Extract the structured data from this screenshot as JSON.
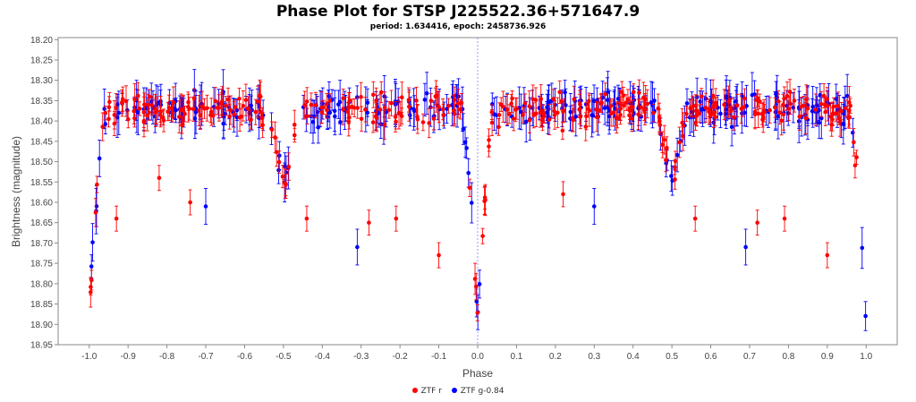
{
  "chart_data": {
    "type": "scatter",
    "title": "Phase Plot for STSP J225522.36+571647.9",
    "subtitle": "period: 1.634416, epoch: 2458736.926",
    "xlabel": "Phase",
    "ylabel": "Brightness (magnitude)",
    "xlim": [
      -1.08,
      1.08
    ],
    "ylim": [
      18.95,
      18.195
    ],
    "y_inverted": true,
    "x_ticks": [
      -1.0,
      -0.9,
      -0.8,
      -0.7,
      -0.6,
      -0.5,
      -0.4,
      -0.3,
      -0.2,
      -0.1,
      0.0,
      0.1,
      0.2,
      0.3,
      0.4,
      0.5,
      0.6,
      0.7,
      0.8,
      0.9,
      1.0
    ],
    "x_tick_labels": [
      "-1.0",
      "-0.9",
      "-0.8",
      "-0.7",
      "-0.6",
      "-0.5",
      "-0.4",
      "-0.3",
      "-0.2",
      "-0.1",
      "0.0",
      "0.1",
      "0.2",
      "0.3",
      "0.4",
      "0.5",
      "0.6",
      "0.7",
      "0.8",
      "0.9",
      "1.0"
    ],
    "y_ticks": [
      18.2,
      18.25,
      18.3,
      18.35,
      18.4,
      18.45,
      18.5,
      18.55,
      18.6,
      18.65,
      18.7,
      18.75,
      18.8,
      18.85,
      18.9,
      18.95
    ],
    "y_tick_labels": [
      "18.20",
      "18.25",
      "18.30",
      "18.35",
      "18.40",
      "18.45",
      "18.50",
      "18.55",
      "18.60",
      "18.65",
      "18.70",
      "18.75",
      "18.80",
      "18.85",
      "18.90",
      "18.95"
    ],
    "reference_line_x": 0.0,
    "grid": false,
    "legend_position": "bottom",
    "light_curve_model": {
      "baseline_magnitude": 18.37,
      "primary_eclipse": {
        "phase": 0.0,
        "depth_mag": 0.52,
        "half_width_phase": 0.045
      },
      "secondary_eclipse": {
        "phase": 0.5,
        "depth_mag": 0.19,
        "half_width_phase": 0.045
      },
      "sample_points": [
        {
          "x": -1.0,
          "y": 18.87
        },
        {
          "x": -0.98,
          "y": 18.62
        },
        {
          "x": -0.96,
          "y": 18.42
        },
        {
          "x": -0.9,
          "y": 18.37
        },
        {
          "x": -0.75,
          "y": 18.37
        },
        {
          "x": -0.56,
          "y": 18.38
        },
        {
          "x": -0.52,
          "y": 18.5
        },
        {
          "x": -0.5,
          "y": 18.56
        },
        {
          "x": -0.47,
          "y": 18.44
        },
        {
          "x": -0.3,
          "y": 18.36
        },
        {
          "x": -0.1,
          "y": 18.37
        },
        {
          "x": -0.03,
          "y": 18.55
        },
        {
          "x": 0.0,
          "y": 18.87
        },
        {
          "x": 0.03,
          "y": 18.52
        },
        {
          "x": 0.1,
          "y": 18.37
        },
        {
          "x": 0.3,
          "y": 18.36
        },
        {
          "x": 0.47,
          "y": 18.44
        },
        {
          "x": 0.5,
          "y": 18.56
        },
        {
          "x": 0.53,
          "y": 18.48
        },
        {
          "x": 0.7,
          "y": 18.37
        },
        {
          "x": 0.9,
          "y": 18.37
        },
        {
          "x": 0.96,
          "y": 18.45
        },
        {
          "x": 1.0,
          "y": 18.87
        }
      ]
    },
    "series": [
      {
        "name": "ZTF r",
        "color": "#ff0000",
        "offset": 0.0,
        "count": 360,
        "outliers": [
          {
            "x": -0.82,
            "y": 18.54
          },
          {
            "x": -0.74,
            "y": 18.6
          },
          {
            "x": -0.93,
            "y": 18.64
          },
          {
            "x": -0.44,
            "y": 18.64
          },
          {
            "x": -0.28,
            "y": 18.65
          },
          {
            "x": -0.21,
            "y": 18.64
          },
          {
            "x": -0.1,
            "y": 18.73
          },
          {
            "x": 0.22,
            "y": 18.58
          },
          {
            "x": 0.56,
            "y": 18.64
          },
          {
            "x": 0.72,
            "y": 18.65
          },
          {
            "x": 0.79,
            "y": 18.64
          },
          {
            "x": 0.9,
            "y": 18.73
          }
        ]
      },
      {
        "name": "ZTF g-0.84",
        "color": "#0000ff",
        "offset": -0.84,
        "count": 300,
        "outliers": [
          {
            "x": -0.31,
            "y": 18.71
          },
          {
            "x": 0.69,
            "y": 18.71
          },
          {
            "x": -0.7,
            "y": 18.61
          },
          {
            "x": 0.3,
            "y": 18.61
          }
        ]
      }
    ]
  },
  "legend": {
    "items": [
      {
        "label": "ZTF r",
        "color": "#ff0000"
      },
      {
        "label": "ZTF g-0.84",
        "color": "#0000ff"
      }
    ]
  }
}
